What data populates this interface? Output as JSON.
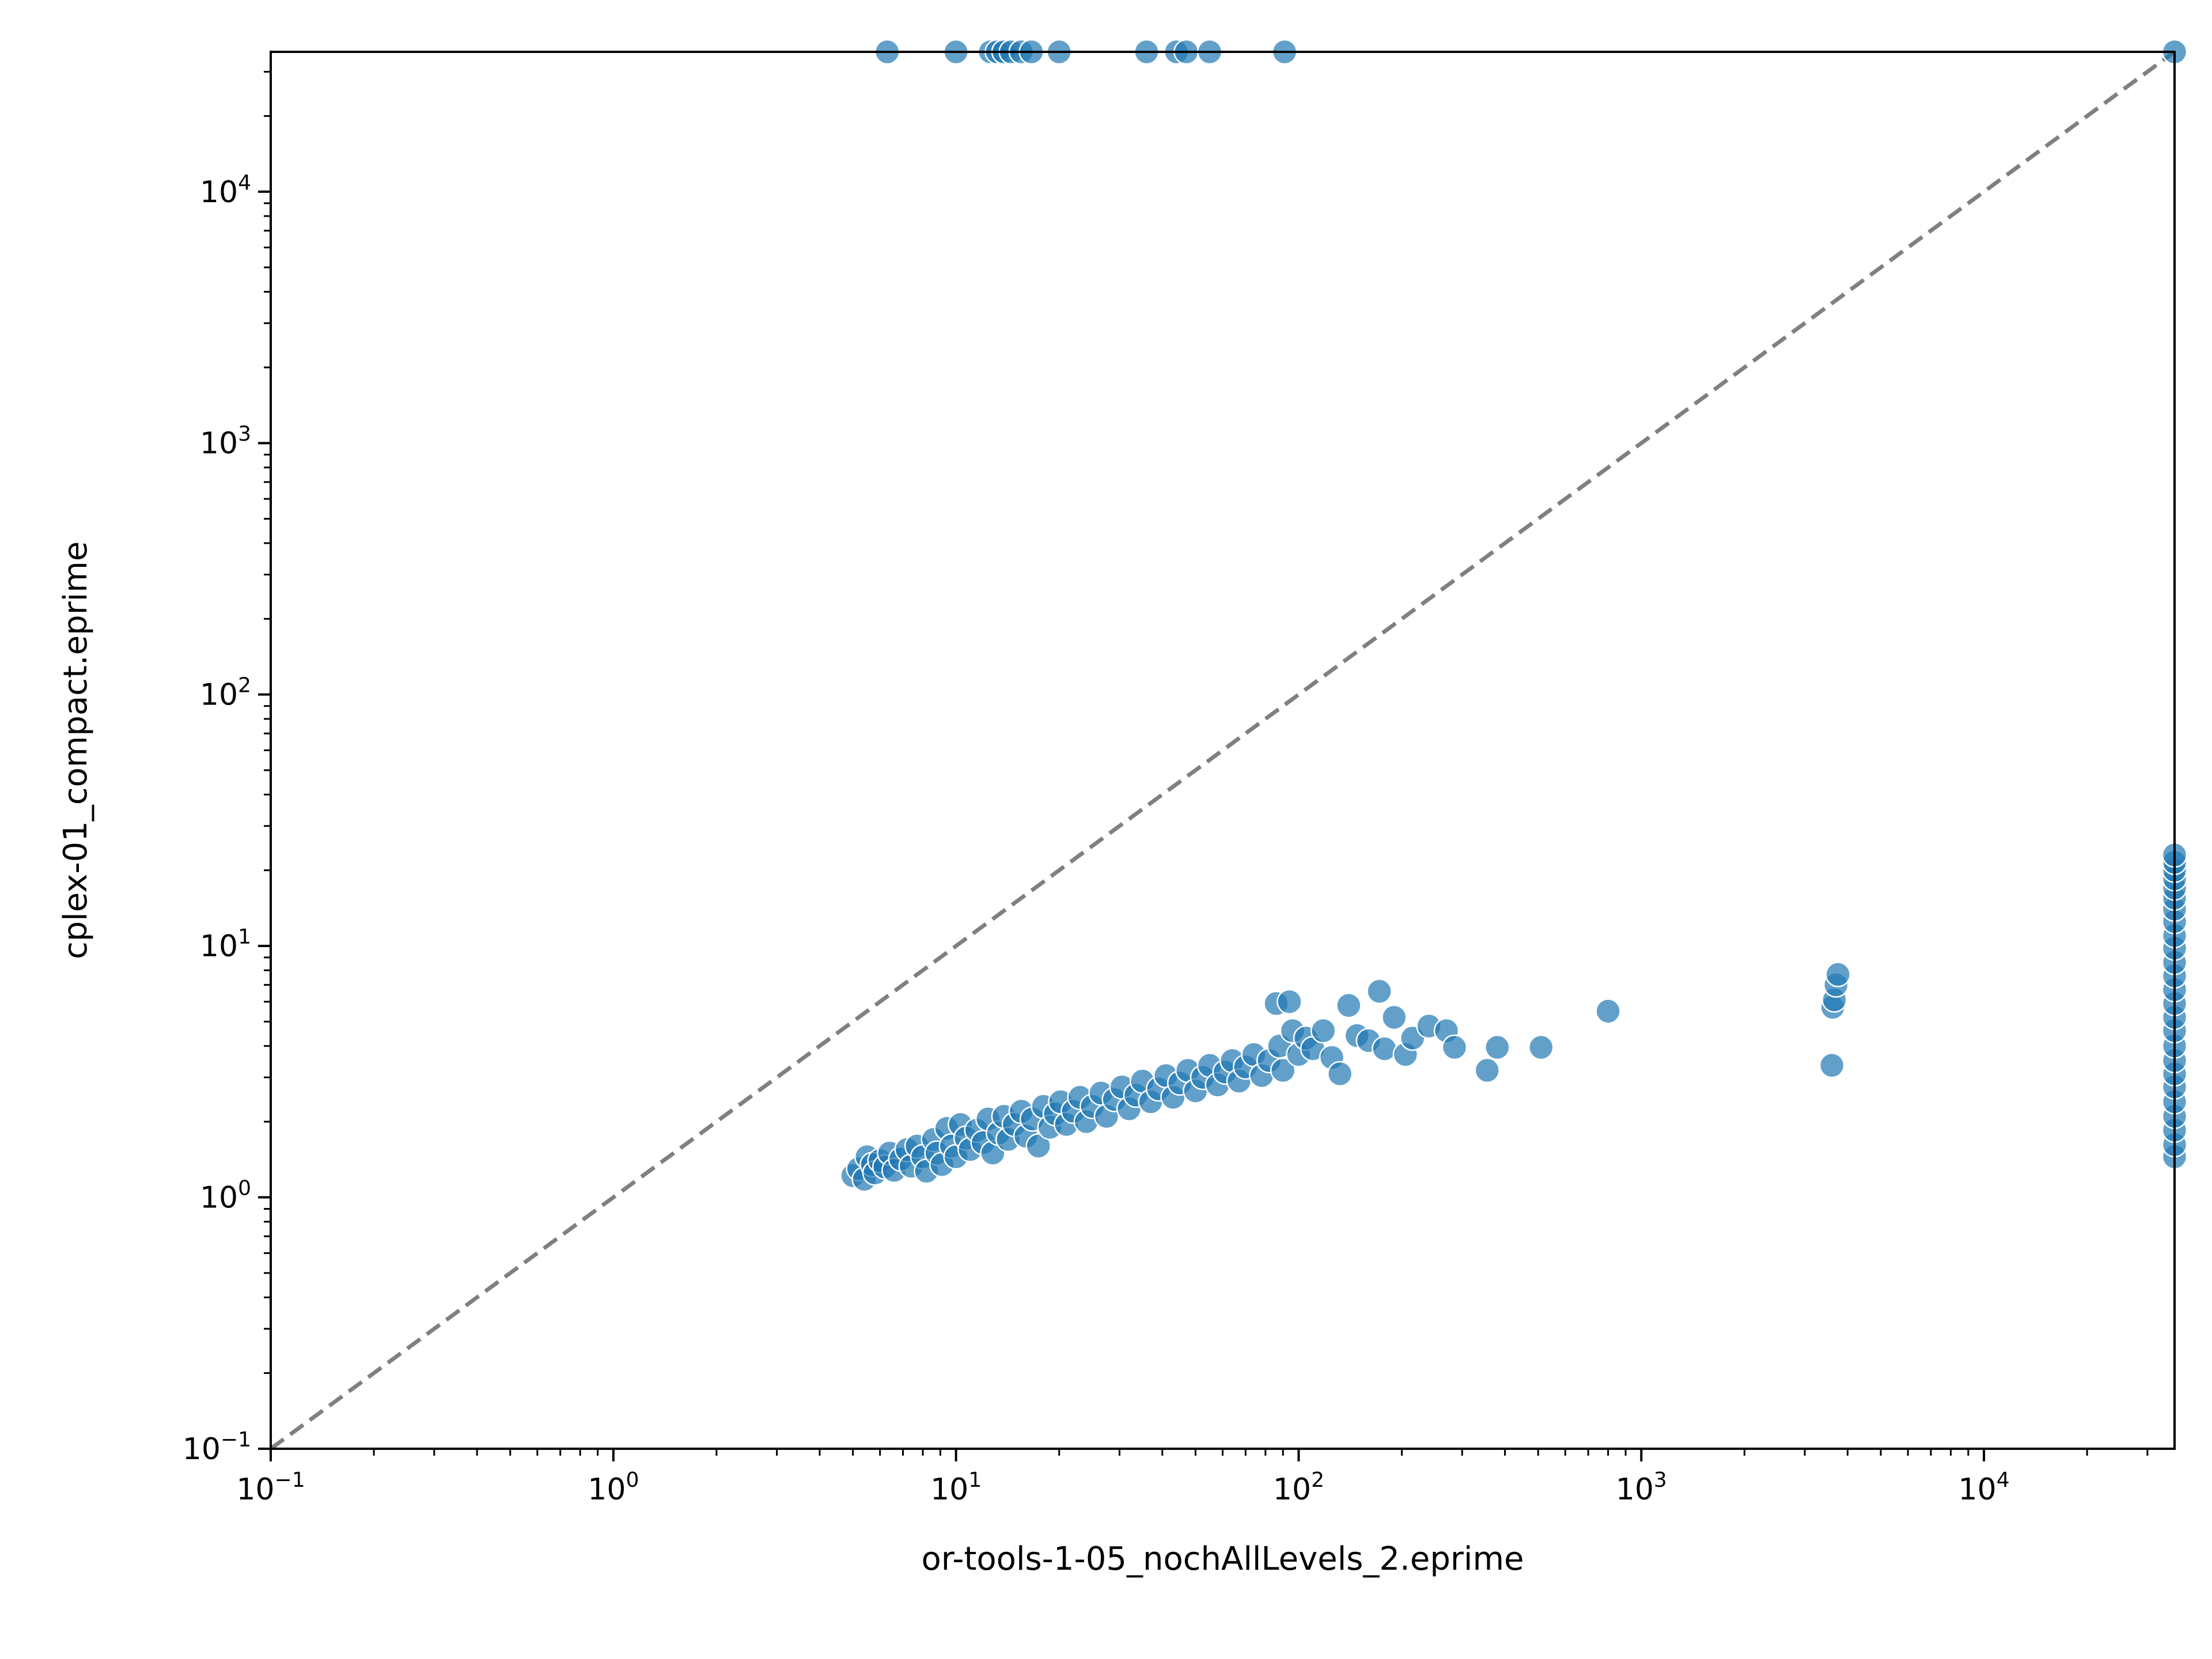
{
  "chart_data": {
    "type": "scatter",
    "xlabel": "or-tools-1-05_nochAllLevels_2.eprime",
    "ylabel": "cplex-01_compact.eprime",
    "xscale": "log",
    "yscale": "log",
    "xlim": [
      0.1,
      36000
    ],
    "ylim": [
      0.1,
      36000
    ],
    "grid": false,
    "legend": "none",
    "point_color": "#1f77b4",
    "point_edge_color": "#ffffff",
    "diagonal": {
      "style": "dashed",
      "color": "#808080",
      "from": [
        0.1,
        0.1
      ],
      "to": [
        36000,
        36000
      ]
    },
    "x_ticks": [
      {
        "value": 0.1,
        "base": "10",
        "exp": "−1"
      },
      {
        "value": 1,
        "base": "10",
        "exp": "0"
      },
      {
        "value": 10,
        "base": "10",
        "exp": "1"
      },
      {
        "value": 100,
        "base": "10",
        "exp": "2"
      },
      {
        "value": 1000,
        "base": "10",
        "exp": "3"
      },
      {
        "value": 10000,
        "base": "10",
        "exp": "4"
      }
    ],
    "y_ticks": [
      {
        "value": 0.1,
        "base": "10",
        "exp": "−1"
      },
      {
        "value": 1,
        "base": "10",
        "exp": "0"
      },
      {
        "value": 10,
        "base": "10",
        "exp": "1"
      },
      {
        "value": 100,
        "base": "10",
        "exp": "2"
      },
      {
        "value": 1000,
        "base": "10",
        "exp": "3"
      },
      {
        "value": 10000,
        "base": "10",
        "exp": "4"
      }
    ],
    "points": [
      {
        "x": 6.3,
        "y": 36000
      },
      {
        "x": 10,
        "y": 36000
      },
      {
        "x": 12.6,
        "y": 36000
      },
      {
        "x": 13.2,
        "y": 36000
      },
      {
        "x": 13.8,
        "y": 36000
      },
      {
        "x": 14.5,
        "y": 36000
      },
      {
        "x": 15.5,
        "y": 36000
      },
      {
        "x": 16.6,
        "y": 36000
      },
      {
        "x": 20,
        "y": 36000
      },
      {
        "x": 36,
        "y": 36000
      },
      {
        "x": 44,
        "y": 36000
      },
      {
        "x": 47,
        "y": 36000
      },
      {
        "x": 55,
        "y": 36000
      },
      {
        "x": 91,
        "y": 36000
      },
      {
        "x": 36000,
        "y": 36000
      },
      {
        "x": 5.0,
        "y": 1.22
      },
      {
        "x": 5.2,
        "y": 1.3
      },
      {
        "x": 5.4,
        "y": 1.18
      },
      {
        "x": 5.5,
        "y": 1.45
      },
      {
        "x": 5.7,
        "y": 1.35
      },
      {
        "x": 5.8,
        "y": 1.25
      },
      {
        "x": 6.0,
        "y": 1.4
      },
      {
        "x": 6.2,
        "y": 1.32
      },
      {
        "x": 6.4,
        "y": 1.5
      },
      {
        "x": 6.6,
        "y": 1.28
      },
      {
        "x": 6.9,
        "y": 1.42
      },
      {
        "x": 7.2,
        "y": 1.55
      },
      {
        "x": 7.4,
        "y": 1.33
      },
      {
        "x": 7.7,
        "y": 1.6
      },
      {
        "x": 8.0,
        "y": 1.45
      },
      {
        "x": 8.2,
        "y": 1.27
      },
      {
        "x": 8.6,
        "y": 1.7
      },
      {
        "x": 8.8,
        "y": 1.5
      },
      {
        "x": 9.1,
        "y": 1.35
      },
      {
        "x": 9.4,
        "y": 1.88
      },
      {
        "x": 9.7,
        "y": 1.6
      },
      {
        "x": 10.0,
        "y": 1.45
      },
      {
        "x": 10.3,
        "y": 1.95
      },
      {
        "x": 10.7,
        "y": 1.72
      },
      {
        "x": 11.0,
        "y": 1.55
      },
      {
        "x": 11.5,
        "y": 1.85
      },
      {
        "x": 12.0,
        "y": 1.65
      },
      {
        "x": 12.4,
        "y": 2.05
      },
      {
        "x": 12.8,
        "y": 1.5
      },
      {
        "x": 13.3,
        "y": 1.8
      },
      {
        "x": 13.8,
        "y": 2.1
      },
      {
        "x": 14.2,
        "y": 1.7
      },
      {
        "x": 14.8,
        "y": 1.95
      },
      {
        "x": 15.5,
        "y": 2.2
      },
      {
        "x": 16.0,
        "y": 1.75
      },
      {
        "x": 16.7,
        "y": 2.05
      },
      {
        "x": 17.4,
        "y": 1.6
      },
      {
        "x": 18.0,
        "y": 2.3
      },
      {
        "x": 18.8,
        "y": 1.9
      },
      {
        "x": 19.5,
        "y": 2.15
      },
      {
        "x": 20.2,
        "y": 2.4
      },
      {
        "x": 21.0,
        "y": 1.95
      },
      {
        "x": 22.0,
        "y": 2.2
      },
      {
        "x": 23.0,
        "y": 2.5
      },
      {
        "x": 24.0,
        "y": 2.0
      },
      {
        "x": 25.0,
        "y": 2.3
      },
      {
        "x": 26.5,
        "y": 2.6
      },
      {
        "x": 27.5,
        "y": 2.1
      },
      {
        "x": 29.0,
        "y": 2.45
      },
      {
        "x": 30.5,
        "y": 2.75
      },
      {
        "x": 32.0,
        "y": 2.25
      },
      {
        "x": 33.5,
        "y": 2.55
      },
      {
        "x": 35.0,
        "y": 2.9
      },
      {
        "x": 37.0,
        "y": 2.4
      },
      {
        "x": 39.0,
        "y": 2.7
      },
      {
        "x": 41.0,
        "y": 3.05
      },
      {
        "x": 43.0,
        "y": 2.5
      },
      {
        "x": 45.0,
        "y": 2.85
      },
      {
        "x": 47.5,
        "y": 3.2
      },
      {
        "x": 50.0,
        "y": 2.65
      },
      {
        "x": 52.5,
        "y": 3.0
      },
      {
        "x": 55.0,
        "y": 3.35
      },
      {
        "x": 58.0,
        "y": 2.8
      },
      {
        "x": 61.0,
        "y": 3.15
      },
      {
        "x": 64.0,
        "y": 3.5
      },
      {
        "x": 67.0,
        "y": 2.9
      },
      {
        "x": 70.0,
        "y": 3.3
      },
      {
        "x": 74.0,
        "y": 3.7
      },
      {
        "x": 78.0,
        "y": 3.05
      },
      {
        "x": 82.0,
        "y": 3.5
      },
      {
        "x": 86.0,
        "y": 5.9
      },
      {
        "x": 88.0,
        "y": 4.0
      },
      {
        "x": 90.0,
        "y": 3.2
      },
      {
        "x": 94.0,
        "y": 6.0
      },
      {
        "x": 96.0,
        "y": 4.6
      },
      {
        "x": 100.0,
        "y": 3.7
      },
      {
        "x": 105.0,
        "y": 4.3
      },
      {
        "x": 110.0,
        "y": 3.9
      },
      {
        "x": 118.0,
        "y": 4.6
      },
      {
        "x": 125.0,
        "y": 3.6
      },
      {
        "x": 132.0,
        "y": 3.1
      },
      {
        "x": 140.0,
        "y": 5.8
      },
      {
        "x": 148.0,
        "y": 4.4
      },
      {
        "x": 160.0,
        "y": 4.2
      },
      {
        "x": 172.0,
        "y": 6.6
      },
      {
        "x": 178.0,
        "y": 3.9
      },
      {
        "x": 190.0,
        "y": 5.2
      },
      {
        "x": 205.0,
        "y": 3.7
      },
      {
        "x": 215.0,
        "y": 4.3
      },
      {
        "x": 240.0,
        "y": 4.8
      },
      {
        "x": 270.0,
        "y": 4.6
      },
      {
        "x": 285.0,
        "y": 3.95
      },
      {
        "x": 355.0,
        "y": 3.2
      },
      {
        "x": 380.0,
        "y": 3.95
      },
      {
        "x": 510.0,
        "y": 3.95
      },
      {
        "x": 800.0,
        "y": 5.5
      },
      {
        "x": 3600.0,
        "y": 3.35
      },
      {
        "x": 3620.0,
        "y": 5.7
      },
      {
        "x": 3660.0,
        "y": 6.1
      },
      {
        "x": 3700.0,
        "y": 7.0
      },
      {
        "x": 3750.0,
        "y": 7.7
      },
      {
        "x": 36000,
        "y": 1.45
      },
      {
        "x": 36000,
        "y": 1.62
      },
      {
        "x": 36000,
        "y": 1.85
      },
      {
        "x": 36000,
        "y": 2.1
      },
      {
        "x": 36000,
        "y": 2.4
      },
      {
        "x": 36000,
        "y": 2.75
      },
      {
        "x": 36000,
        "y": 3.1
      },
      {
        "x": 36000,
        "y": 3.5
      },
      {
        "x": 36000,
        "y": 4.0
      },
      {
        "x": 36000,
        "y": 4.6
      },
      {
        "x": 36000,
        "y": 5.2
      },
      {
        "x": 36000,
        "y": 5.9
      },
      {
        "x": 36000,
        "y": 6.7
      },
      {
        "x": 36000,
        "y": 7.6
      },
      {
        "x": 36000,
        "y": 8.6
      },
      {
        "x": 36000,
        "y": 9.8
      },
      {
        "x": 36000,
        "y": 11.0
      },
      {
        "x": 36000,
        "y": 12.5
      },
      {
        "x": 36000,
        "y": 14.0
      },
      {
        "x": 36000,
        "y": 15.5
      },
      {
        "x": 36000,
        "y": 17.0
      },
      {
        "x": 36000,
        "y": 18.5
      },
      {
        "x": 36000,
        "y": 20.0
      },
      {
        "x": 36000,
        "y": 21.5
      },
      {
        "x": 36000,
        "y": 23.0
      }
    ]
  }
}
